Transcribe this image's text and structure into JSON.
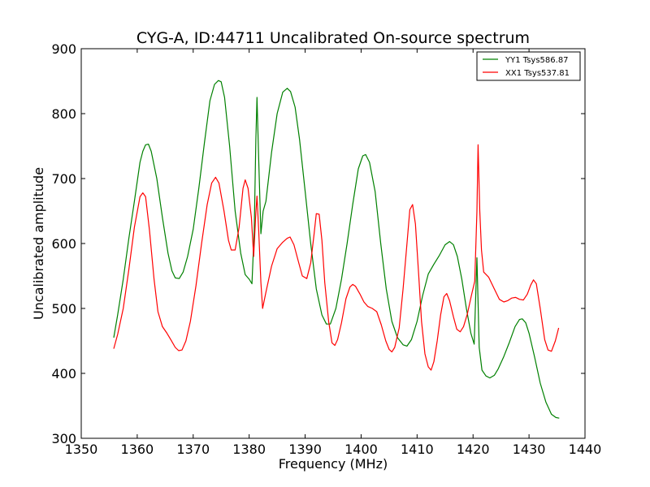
{
  "chart_data": {
    "type": "line",
    "title": "CYG-A, ID:44711 Uncalibrated On-source spectrum",
    "xlabel": "Frequency (MHz)",
    "ylabel": "Uncalibrated amplitude",
    "xlim": [
      1350,
      1440
    ],
    "ylim": [
      300,
      900
    ],
    "xticks": [
      1350,
      1360,
      1370,
      1380,
      1390,
      1400,
      1410,
      1420,
      1430,
      1440
    ],
    "yticks": [
      300,
      400,
      500,
      600,
      700,
      800,
      900
    ],
    "grid": false,
    "legend_position": "top-right",
    "series": [
      {
        "name": "YY1 Tsys586.87",
        "color": "#008000",
        "points": [
          [
            1355.8,
            455
          ],
          [
            1356.5,
            490
          ],
          [
            1357.5,
            545
          ],
          [
            1358.5,
            608
          ],
          [
            1359.5,
            665
          ],
          [
            1360.5,
            725
          ],
          [
            1361.0,
            742
          ],
          [
            1361.5,
            752
          ],
          [
            1362.0,
            753
          ],
          [
            1362.5,
            742
          ],
          [
            1363.5,
            700
          ],
          [
            1364.5,
            640
          ],
          [
            1365.5,
            585
          ],
          [
            1366.2,
            558
          ],
          [
            1366.8,
            547
          ],
          [
            1367.5,
            546
          ],
          [
            1368.2,
            556
          ],
          [
            1369.0,
            580
          ],
          [
            1370.0,
            622
          ],
          [
            1371.0,
            685
          ],
          [
            1372.0,
            755
          ],
          [
            1373.0,
            820
          ],
          [
            1373.8,
            845
          ],
          [
            1374.5,
            851
          ],
          [
            1375.0,
            849
          ],
          [
            1375.6,
            825
          ],
          [
            1376.5,
            750
          ],
          [
            1377.5,
            650
          ],
          [
            1378.5,
            585
          ],
          [
            1379.3,
            552
          ],
          [
            1380.0,
            545
          ],
          [
            1380.5,
            538
          ],
          [
            1380.9,
            620
          ],
          [
            1381.2,
            760
          ],
          [
            1381.4,
            825
          ],
          [
            1381.7,
            730
          ],
          [
            1382.1,
            615
          ],
          [
            1382.5,
            650
          ],
          [
            1383.0,
            665
          ],
          [
            1384.0,
            740
          ],
          [
            1385.0,
            800
          ],
          [
            1386.0,
            833
          ],
          [
            1386.8,
            839
          ],
          [
            1387.4,
            834
          ],
          [
            1388.2,
            810
          ],
          [
            1389.0,
            760
          ],
          [
            1390.0,
            680
          ],
          [
            1391.0,
            600
          ],
          [
            1392.0,
            530
          ],
          [
            1393.0,
            490
          ],
          [
            1393.8,
            476
          ],
          [
            1394.5,
            476
          ],
          [
            1395.5,
            500
          ],
          [
            1396.5,
            545
          ],
          [
            1397.5,
            600
          ],
          [
            1398.5,
            660
          ],
          [
            1399.5,
            715
          ],
          [
            1400.3,
            735
          ],
          [
            1400.8,
            737
          ],
          [
            1401.5,
            725
          ],
          [
            1402.5,
            680
          ],
          [
            1403.5,
            600
          ],
          [
            1404.5,
            530
          ],
          [
            1405.5,
            480
          ],
          [
            1406.5,
            455
          ],
          [
            1407.5,
            444
          ],
          [
            1408.2,
            442
          ],
          [
            1409.0,
            452
          ],
          [
            1410.0,
            480
          ],
          [
            1411.0,
            520
          ],
          [
            1412.0,
            553
          ],
          [
            1413.0,
            568
          ],
          [
            1414.0,
            582
          ],
          [
            1415.0,
            598
          ],
          [
            1415.8,
            603
          ],
          [
            1416.5,
            598
          ],
          [
            1417.2,
            580
          ],
          [
            1418.0,
            545
          ],
          [
            1418.8,
            500
          ],
          [
            1419.6,
            462
          ],
          [
            1420.2,
            445
          ],
          [
            1420.7,
            578
          ],
          [
            1421.1,
            440
          ],
          [
            1421.6,
            405
          ],
          [
            1422.3,
            396
          ],
          [
            1423.0,
            393
          ],
          [
            1423.8,
            397
          ],
          [
            1424.5,
            407
          ],
          [
            1425.5,
            426
          ],
          [
            1426.5,
            448
          ],
          [
            1427.5,
            472
          ],
          [
            1428.3,
            483
          ],
          [
            1428.8,
            484
          ],
          [
            1429.4,
            478
          ],
          [
            1430.0,
            462
          ],
          [
            1431.0,
            425
          ],
          [
            1432.0,
            385
          ],
          [
            1433.0,
            356
          ],
          [
            1434.0,
            337
          ],
          [
            1434.8,
            332
          ],
          [
            1435.4,
            331
          ]
        ]
      },
      {
        "name": "XX1 Tsys537.81",
        "color": "#ff0000",
        "points": [
          [
            1355.8,
            438
          ],
          [
            1356.5,
            460
          ],
          [
            1357.5,
            500
          ],
          [
            1358.5,
            560
          ],
          [
            1359.5,
            625
          ],
          [
            1360.5,
            672
          ],
          [
            1361.0,
            678
          ],
          [
            1361.5,
            672
          ],
          [
            1362.2,
            620
          ],
          [
            1363.0,
            545
          ],
          [
            1363.7,
            495
          ],
          [
            1364.5,
            472
          ],
          [
            1365.3,
            462
          ],
          [
            1366.0,
            452
          ],
          [
            1366.8,
            440
          ],
          [
            1367.4,
            435
          ],
          [
            1368.0,
            436
          ],
          [
            1368.7,
            450
          ],
          [
            1369.5,
            480
          ],
          [
            1370.5,
            535
          ],
          [
            1371.5,
            600
          ],
          [
            1372.5,
            660
          ],
          [
            1373.3,
            693
          ],
          [
            1374.0,
            702
          ],
          [
            1374.6,
            693
          ],
          [
            1375.5,
            650
          ],
          [
            1376.3,
            605
          ],
          [
            1376.8,
            590
          ],
          [
            1377.5,
            590
          ],
          [
            1378.2,
            625
          ],
          [
            1378.9,
            685
          ],
          [
            1379.3,
            698
          ],
          [
            1379.8,
            685
          ],
          [
            1380.4,
            640
          ],
          [
            1380.8,
            580
          ],
          [
            1381.2,
            648
          ],
          [
            1381.4,
            673
          ],
          [
            1381.7,
            620
          ],
          [
            1382.1,
            540
          ],
          [
            1382.4,
            500
          ],
          [
            1383.0,
            525
          ],
          [
            1384.0,
            565
          ],
          [
            1385.0,
            592
          ],
          [
            1386.0,
            602
          ],
          [
            1386.8,
            608
          ],
          [
            1387.3,
            610
          ],
          [
            1388.0,
            598
          ],
          [
            1388.8,
            572
          ],
          [
            1389.5,
            550
          ],
          [
            1390.3,
            546
          ],
          [
            1391.0,
            570
          ],
          [
            1391.6,
            615
          ],
          [
            1392.0,
            646
          ],
          [
            1392.5,
            645
          ],
          [
            1393.0,
            605
          ],
          [
            1393.5,
            540
          ],
          [
            1394.2,
            480
          ],
          [
            1394.8,
            447
          ],
          [
            1395.3,
            443
          ],
          [
            1395.8,
            452
          ],
          [
            1396.5,
            478
          ],
          [
            1397.3,
            515
          ],
          [
            1398.0,
            533
          ],
          [
            1398.5,
            537
          ],
          [
            1399.0,
            534
          ],
          [
            1399.8,
            522
          ],
          [
            1400.5,
            510
          ],
          [
            1401.2,
            503
          ],
          [
            1402.0,
            500
          ],
          [
            1402.8,
            495
          ],
          [
            1403.6,
            475
          ],
          [
            1404.4,
            450
          ],
          [
            1405.0,
            437
          ],
          [
            1405.5,
            433
          ],
          [
            1406.0,
            440
          ],
          [
            1406.8,
            470
          ],
          [
            1407.5,
            530
          ],
          [
            1408.2,
            600
          ],
          [
            1408.7,
            652
          ],
          [
            1409.2,
            660
          ],
          [
            1409.7,
            630
          ],
          [
            1410.3,
            550
          ],
          [
            1410.8,
            480
          ],
          [
            1411.4,
            430
          ],
          [
            1412.0,
            410
          ],
          [
            1412.5,
            405
          ],
          [
            1413.0,
            418
          ],
          [
            1413.6,
            450
          ],
          [
            1414.2,
            490
          ],
          [
            1414.8,
            518
          ],
          [
            1415.3,
            523
          ],
          [
            1415.8,
            512
          ],
          [
            1416.5,
            487
          ],
          [
            1417.1,
            468
          ],
          [
            1417.7,
            464
          ],
          [
            1418.3,
            472
          ],
          [
            1419.0,
            492
          ],
          [
            1419.7,
            520
          ],
          [
            1420.3,
            542
          ],
          [
            1420.7,
            650
          ],
          [
            1420.9,
            752
          ],
          [
            1421.2,
            650
          ],
          [
            1421.5,
            590
          ],
          [
            1421.9,
            556
          ],
          [
            1422.8,
            548
          ],
          [
            1423.8,
            530
          ],
          [
            1424.7,
            514
          ],
          [
            1425.5,
            510
          ],
          [
            1426.2,
            512
          ],
          [
            1426.9,
            516
          ],
          [
            1427.6,
            517
          ],
          [
            1428.3,
            514
          ],
          [
            1429.0,
            513
          ],
          [
            1429.7,
            522
          ],
          [
            1430.3,
            536
          ],
          [
            1430.8,
            544
          ],
          [
            1431.3,
            538
          ],
          [
            1432.0,
            500
          ],
          [
            1432.8,
            452
          ],
          [
            1433.4,
            436
          ],
          [
            1434.0,
            434
          ],
          [
            1434.7,
            450
          ],
          [
            1435.3,
            470
          ]
        ]
      }
    ]
  }
}
